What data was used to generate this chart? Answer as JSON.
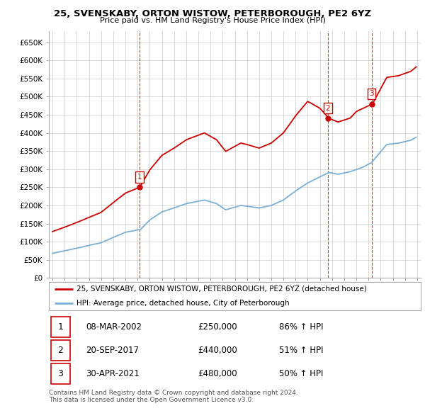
{
  "title1": "25, SVENSKABY, ORTON WISTOW, PETERBOROUGH, PE2 6YZ",
  "title2": "Price paid vs. HM Land Registry's House Price Index (HPI)",
  "legend_line1": "25, SVENSKABY, ORTON WISTOW, PETERBOROUGH, PE2 6YZ (detached house)",
  "legend_line2": "HPI: Average price, detached house, City of Peterborough",
  "sale_color": "#cc0000",
  "hpi_color": "#7bafd4",
  "transactions": [
    {
      "label": "1",
      "date": "2002-03-08",
      "price": 250000,
      "pct": "86% ↑ HPI"
    },
    {
      "label": "2",
      "date": "2017-09-20",
      "price": 440000,
      "pct": "51% ↑ HPI"
    },
    {
      "label": "3",
      "date": "2021-04-30",
      "price": 480000,
      "pct": "50% ↑ HPI"
    }
  ],
  "dates_str": [
    "08-MAR-2002",
    "20-SEP-2017",
    "30-APR-2021"
  ],
  "prices_str": [
    "£250,000",
    "£440,000",
    "£480,000"
  ],
  "pcts_str": [
    "86% ↑ HPI",
    "51% ↑ HPI",
    "50% ↑ HPI"
  ],
  "footer": "Contains HM Land Registry data © Crown copyright and database right 2024.\nThis data is licensed under the Open Government Licence v3.0.",
  "ylim": [
    0,
    680000
  ],
  "yticks": [
    0,
    50000,
    100000,
    150000,
    200000,
    250000,
    300000,
    350000,
    400000,
    450000,
    500000,
    550000,
    600000,
    650000
  ],
  "background_color": "#ffffff",
  "grid_color": "#cccccc",
  "hpi_anchors_x": [
    1995.0,
    1996.0,
    1997.0,
    1998.0,
    1999.0,
    2000.0,
    2001.0,
    2002.25,
    2003.0,
    2004.0,
    2005.0,
    2006.0,
    2007.5,
    2008.5,
    2009.25,
    2010.5,
    2011.0,
    2012.0,
    2013.0,
    2014.0,
    2015.0,
    2016.0,
    2017.75,
    2018.5,
    2019.5,
    2020.5,
    2021.25,
    2022.5,
    2023.5,
    2024.5,
    2024.92
  ],
  "hpi_anchors_y": [
    68000,
    75000,
    82000,
    90000,
    97000,
    112000,
    126000,
    134000,
    160000,
    182000,
    193000,
    205000,
    215000,
    205000,
    188000,
    200000,
    198000,
    193000,
    200000,
    215000,
    240000,
    262000,
    291000,
    286000,
    293000,
    305000,
    318000,
    368000,
    372000,
    380000,
    388000
  ],
  "sale_anchors_x": [
    1995.0,
    1996.0,
    1997.0,
    1998.0,
    1999.0,
    2000.0,
    2001.0,
    2002.17,
    2003.0,
    2004.0,
    2005.0,
    2006.0,
    2007.5,
    2008.5,
    2009.25,
    2010.5,
    2011.0,
    2012.0,
    2013.0,
    2014.0,
    2015.0,
    2016.0,
    2017.0,
    2017.75,
    2018.5,
    2019.5,
    2020.0,
    2021.33,
    2022.5,
    2023.5,
    2024.5,
    2024.92
  ],
  "sale_anchors_y": [
    128000,
    140000,
    153000,
    167000,
    181000,
    208000,
    234000,
    250000,
    298000,
    338000,
    358000,
    381000,
    400000,
    381000,
    349000,
    372000,
    368000,
    358000,
    372000,
    400000,
    447000,
    487000,
    468000,
    440000,
    430000,
    441000,
    459000,
    480000,
    553000,
    558000,
    570000,
    582000
  ]
}
